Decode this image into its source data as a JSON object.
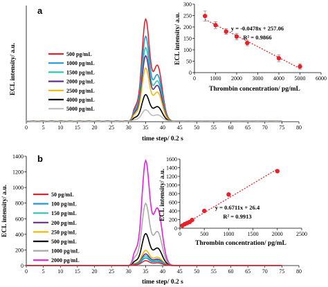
{
  "chart_data": [
    {
      "panel": "a",
      "type": "line",
      "xlabel": "time step/ 0.2 s",
      "ylabel": "ECL intensity/ a.u.",
      "xlim": [
        0,
        80
      ],
      "xticks": [
        0,
        5,
        10,
        15,
        20,
        25,
        30,
        35,
        40,
        45,
        50,
        55,
        60,
        65,
        70,
        75,
        80
      ],
      "legend_position": "left",
      "series": [
        {
          "name": "500 pg/mL",
          "color": "#e8202a",
          "peak": 250
        },
        {
          "name": "1000 pg/mL",
          "color": "#1e9ad6",
          "peak": 208
        },
        {
          "name": "1500 pg/mL",
          "color": "#2ec7b8",
          "peak": 180
        },
        {
          "name": "2000 pg/mL",
          "color": "#6a2c91",
          "peak": 160
        },
        {
          "name": "2500 pg/mL",
          "color": "#f2b705",
          "peak": 130
        },
        {
          "name": "4000 pg/mL",
          "color": "#000000",
          "peak": 65
        },
        {
          "name": "5000 pg/mL",
          "color": "#bdbdbd",
          "peak": 28
        }
      ]
    },
    {
      "panel": "a-inset",
      "type": "scatter",
      "xlabel": "Thrombin concentration/ pg/mL",
      "ylabel": "ECL intensity/ a.u.",
      "xlim": [
        0,
        6000
      ],
      "ylim": [
        0,
        300
      ],
      "xticks": [
        0,
        1000,
        2000,
        3000,
        4000,
        5000,
        6000
      ],
      "yticks": [
        0,
        50,
        100,
        150,
        200,
        250,
        300
      ],
      "x": [
        500,
        1000,
        1500,
        2000,
        2500,
        4000,
        5000
      ],
      "y": [
        248,
        208,
        180,
        158,
        130,
        63,
        27
      ],
      "err": [
        22,
        15,
        12,
        14,
        12,
        15,
        12
      ],
      "fit": {
        "slope": -0.0478,
        "intercept": 257.06
      },
      "equation": "y = -0.0478x + 257.06",
      "r2": "R² = 0.9866"
    },
    {
      "panel": "b",
      "type": "line",
      "xlabel": "time step/ 0.2 s",
      "ylabel": "ECL intensity/ a.u.",
      "xlim": [
        0,
        80
      ],
      "ylim": [
        0,
        1400
      ],
      "xticks": [
        0,
        5,
        10,
        15,
        20,
        25,
        30,
        35,
        40,
        45,
        50,
        55,
        60,
        65,
        70,
        75,
        80
      ],
      "yticks": [
        0,
        200,
        400,
        600,
        800,
        1000,
        1200,
        1400
      ],
      "legend_position": "left",
      "series": [
        {
          "name": "50 pg/mL",
          "color": "#e8202a",
          "peak": 60
        },
        {
          "name": "100 pg/mL",
          "color": "#1e9ad6",
          "peak": 95
        },
        {
          "name": "150 pg/mL",
          "color": "#2ec7b8",
          "peak": 120
        },
        {
          "name": "200 pg/mL",
          "color": "#6a2c91",
          "peak": 145
        },
        {
          "name": "250 pg/mL",
          "color": "#f2b705",
          "peak": 190
        },
        {
          "name": "500 pg/mL",
          "color": "#000000",
          "peak": 400
        },
        {
          "name": "1000 pg/mL",
          "color": "#a8a8a8",
          "peak": 780
        },
        {
          "name": "2000 pg/mL",
          "color": "#e81ee0",
          "peak": 1320
        }
      ]
    },
    {
      "panel": "b-inset",
      "type": "scatter",
      "xlabel": "Thrombin concentration/ pg/mL",
      "ylabel": "ECL intensity/ a.u.",
      "xlim": [
        0,
        2500
      ],
      "ylim": [
        0,
        1600
      ],
      "xticks": [
        0,
        500,
        1000,
        1500,
        2000,
        2500
      ],
      "yticks": [
        0,
        200,
        400,
        600,
        800,
        1000,
        1200,
        1400,
        1600
      ],
      "x": [
        50,
        100,
        150,
        200,
        250,
        500,
        1000,
        2000
      ],
      "y": [
        60,
        95,
        120,
        145,
        190,
        400,
        780,
        1320
      ],
      "err": [
        8,
        8,
        10,
        10,
        12,
        30,
        30,
        20
      ],
      "fit": {
        "slope": 0.6711,
        "intercept": 26.4
      },
      "equation": "y = 0.6711x + 26.4",
      "r2": "R² = 0.9913"
    }
  ]
}
